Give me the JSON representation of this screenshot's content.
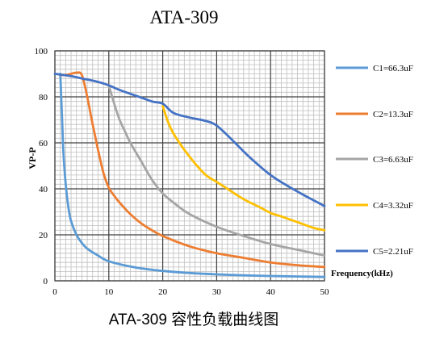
{
  "chart_data": {
    "type": "line",
    "title": "ATA-309",
    "caption": "ATA-309 容性负载曲线图",
    "xlabel": "Frequency(kHz)",
    "ylabel": "VP-P",
    "xlim": [
      0,
      50
    ],
    "ylim": [
      0,
      100
    ],
    "x_ticks": [
      0,
      10,
      20,
      30,
      40,
      50
    ],
    "y_ticks": [
      0,
      20,
      40,
      60,
      80,
      100
    ],
    "grid": true,
    "legend_position": "right",
    "series": [
      {
        "name": "C1=66.3uF",
        "color": "#5b9bd5",
        "points": [
          [
            1,
            90
          ],
          [
            1.3,
            72
          ],
          [
            1.6,
            55
          ],
          [
            2,
            42
          ],
          [
            2.5,
            32
          ],
          [
            3,
            26
          ],
          [
            4,
            20
          ],
          [
            5,
            16.5
          ],
          [
            6,
            14
          ],
          [
            8,
            11
          ],
          [
            10,
            8.5
          ],
          [
            15,
            5.8
          ],
          [
            20,
            4.3
          ],
          [
            25,
            3.4
          ],
          [
            30,
            2.8
          ],
          [
            35,
            2.4
          ],
          [
            40,
            2.1
          ],
          [
            45,
            1.9
          ],
          [
            50,
            1.7
          ]
        ]
      },
      {
        "name": "C2=13.3uF",
        "color": "#ed7d31",
        "points": [
          [
            1,
            89.5
          ],
          [
            2,
            89.5
          ],
          [
            3,
            90
          ],
          [
            4,
            90.5
          ],
          [
            5,
            89.5
          ],
          [
            6,
            80
          ],
          [
            7,
            68
          ],
          [
            8,
            57
          ],
          [
            9,
            47
          ],
          [
            10,
            40.5
          ],
          [
            11,
            37
          ],
          [
            12,
            34
          ],
          [
            14,
            29
          ],
          [
            16,
            25
          ],
          [
            18,
            22
          ],
          [
            20,
            19.5
          ],
          [
            25,
            15
          ],
          [
            30,
            12
          ],
          [
            35,
            10
          ],
          [
            40,
            8
          ],
          [
            45,
            6.8
          ],
          [
            50,
            6
          ]
        ]
      },
      {
        "name": "C3=6.63uF",
        "color": "#a5a5a5",
        "points": [
          [
            10,
            85
          ],
          [
            11,
            77
          ],
          [
            12,
            70
          ],
          [
            13,
            65
          ],
          [
            14,
            60
          ],
          [
            16,
            52
          ],
          [
            18,
            44
          ],
          [
            20,
            38
          ],
          [
            22,
            34
          ],
          [
            25,
            29
          ],
          [
            30,
            23.5
          ],
          [
            35,
            19.5
          ],
          [
            40,
            16
          ],
          [
            45,
            13.5
          ],
          [
            50,
            11
          ]
        ]
      },
      {
        "name": "C4=3.32uF",
        "color": "#ffc000",
        "points": [
          [
            20,
            76
          ],
          [
            21,
            69
          ],
          [
            22,
            64
          ],
          [
            24,
            57
          ],
          [
            26,
            51
          ],
          [
            28,
            46
          ],
          [
            30,
            43
          ],
          [
            32,
            40
          ],
          [
            35,
            35.5
          ],
          [
            38,
            32
          ],
          [
            40,
            29.5
          ],
          [
            42,
            28
          ],
          [
            45,
            25.5
          ],
          [
            48,
            23
          ],
          [
            50,
            22
          ]
        ]
      },
      {
        "name": "C5=2.21uF",
        "color": "#4472c4",
        "points": [
          [
            0,
            90
          ],
          [
            3,
            89
          ],
          [
            5,
            88
          ],
          [
            8,
            86.5
          ],
          [
            10,
            85
          ],
          [
            12,
            83
          ],
          [
            15,
            80.5
          ],
          [
            18,
            78
          ],
          [
            20,
            77
          ],
          [
            22,
            73
          ],
          [
            25,
            71
          ],
          [
            28,
            69.5
          ],
          [
            30,
            67.5
          ],
          [
            33,
            61
          ],
          [
            36,
            54
          ],
          [
            40,
            46
          ],
          [
            43,
            41.5
          ],
          [
            46,
            37.5
          ],
          [
            48,
            35
          ],
          [
            50,
            32.5
          ]
        ]
      }
    ]
  }
}
